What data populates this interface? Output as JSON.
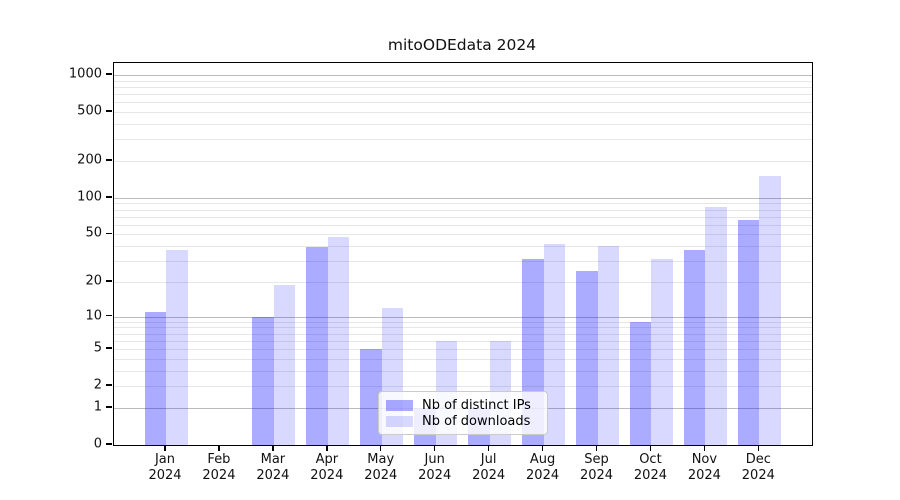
{
  "title": "mitoODEdata 2024",
  "colors": {
    "ips": "rgba(0,0,255,0.33)",
    "downloads": "rgba(0,0,255,0.15)",
    "grid_major": "#bcbcbc",
    "grid_minor": "#e7e7e7",
    "spine": "#000000"
  },
  "legend": {
    "items": [
      {
        "label": "Nb of distinct IPs",
        "color_key": "ips"
      },
      {
        "label": "Nb of downloads",
        "color_key": "downloads"
      }
    ]
  },
  "chart_data": {
    "type": "bar",
    "title": "mitoODEdata 2024",
    "xlabel": "",
    "ylabel": "",
    "scale": "log1p",
    "grid": true,
    "legend_position": "lower center",
    "categories": [
      "Jan",
      "Feb",
      "Mar",
      "Apr",
      "May",
      "Jun",
      "Jul",
      "Aug",
      "Sep",
      "Oct",
      "Nov",
      "Dec"
    ],
    "year_label": "2024",
    "series": [
      {
        "name": "Nb of distinct IPs",
        "values": [
          11,
          0,
          10,
          39,
          5,
          1,
          1,
          31,
          25,
          9,
          37,
          66
        ]
      },
      {
        "name": "Nb of downloads",
        "values": [
          37,
          0,
          19,
          48,
          12,
          6,
          6,
          42,
          40,
          31,
          84,
          150
        ]
      }
    ],
    "yticks": [
      0,
      1,
      2,
      5,
      10,
      20,
      50,
      100,
      200,
      500,
      1000
    ],
    "ytick_major_grid": [
      1,
      10,
      100,
      1000
    ],
    "ytick_minor_grid": [
      2,
      3,
      4,
      5,
      6,
      7,
      8,
      9,
      20,
      30,
      40,
      50,
      60,
      70,
      80,
      90,
      200,
      300,
      400,
      500,
      600,
      700,
      800,
      900
    ],
    "ylim": [
      0,
      1250
    ]
  }
}
